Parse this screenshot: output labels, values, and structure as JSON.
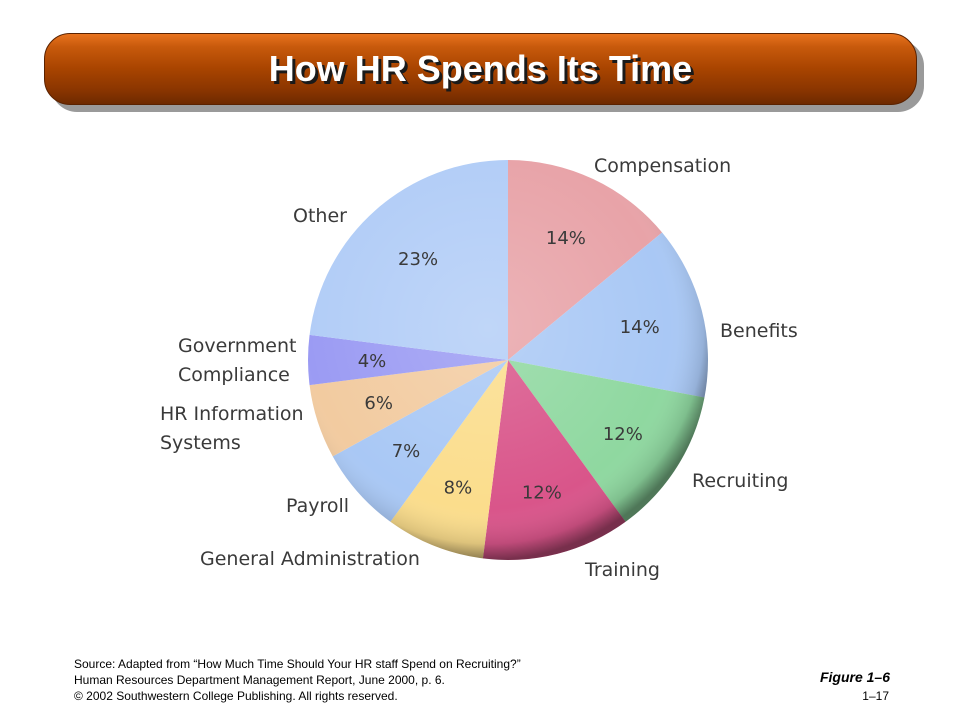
{
  "slide": {
    "title": "How HR Spends Its Time",
    "figure_label": "Figure 1–6",
    "page_number": "1–17",
    "source_lines": [
      "Source: Adapted from “How Much Time Should Your HR staff Spend on Recruiting?”",
      "Human Resources Department Management Report, June 2000, p. 6.",
      "© 2002 Southwestern College Publishing. All rights reserved."
    ]
  },
  "colors": {
    "title_bar": "#a84400",
    "title_text": "#ffffff"
  },
  "chart_data": {
    "type": "pie",
    "title": "",
    "unit": "%",
    "slices": [
      {
        "label": "Compensation",
        "value": 14,
        "value_label": "14%",
        "color": "#e8a3a8"
      },
      {
        "label": "Benefits",
        "value": 14,
        "value_label": "14%",
        "color": "#a9c8f5"
      },
      {
        "label": "Recruiting",
        "value": 12,
        "value_label": "12%",
        "color": "#8fd8a0"
      },
      {
        "label": "Training",
        "value": 12,
        "value_label": "12%",
        "color": "#d9558a"
      },
      {
        "label": "General Administration",
        "value": 8,
        "value_label": "8%",
        "color": "#fbdd8c"
      },
      {
        "label": "Payroll",
        "value": 7,
        "value_label": "7%",
        "color": "#a9c8f5"
      },
      {
        "label": "HR Information Systems",
        "value": 6,
        "value_label": "6%",
        "color": "#f2cba0"
      },
      {
        "label": "Government Compliance",
        "value": 4,
        "value_label": "4%",
        "color": "#9b9bf3"
      },
      {
        "label": "Other",
        "value": 23,
        "value_label": "23%",
        "color": "#b2cdf7"
      }
    ]
  }
}
